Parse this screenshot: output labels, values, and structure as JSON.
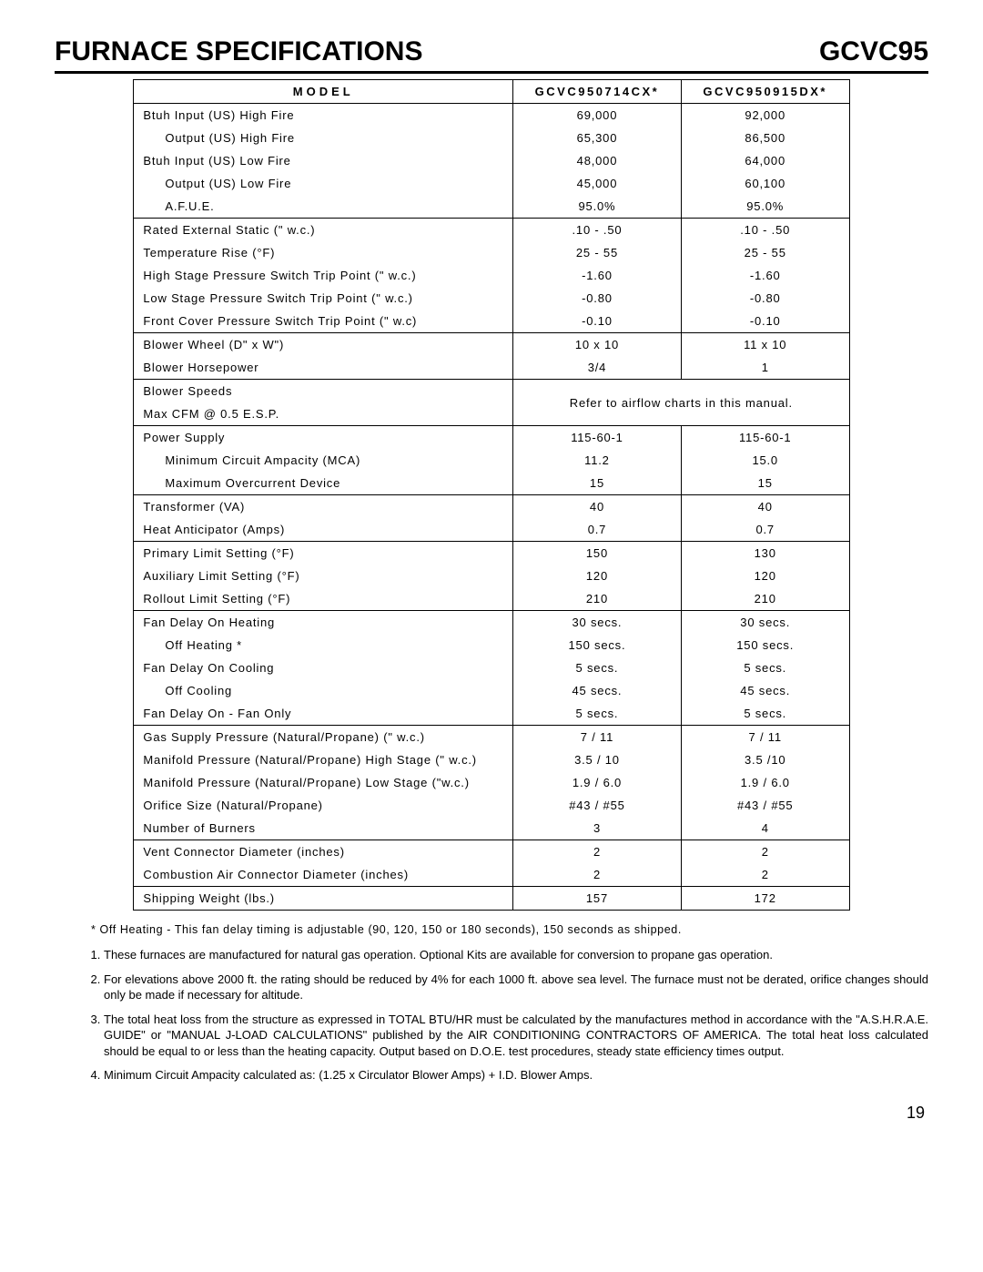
{
  "header": {
    "title": "FURNACE SPECIFICATIONS",
    "code": "GCVC95"
  },
  "table": {
    "col_label": "MODEL",
    "col1": "GCVC950714CX*",
    "col2": "GCVC950915DX*",
    "col_widths": {
      "label": "53%",
      "val": "23.5%"
    },
    "rows": [
      {
        "label": "Btuh Input (US) High Fire",
        "v1": "69,000",
        "v2": "92,000"
      },
      {
        "label": "Output (US) High Fire",
        "indent": 1,
        "v1": "65,300",
        "v2": "86,500"
      },
      {
        "label": "Btuh Input (US) Low Fire",
        "v1": "48,000",
        "v2": "64,000"
      },
      {
        "label": "Output (US) Low Fire",
        "indent": 1,
        "v1": "45,000",
        "v2": "60,100"
      },
      {
        "label": "A.F.U.E.",
        "indent": 1,
        "v1": "95.0%",
        "v2": "95.0%",
        "sep": true
      },
      {
        "label": "Rated External Static (\" w.c.)",
        "v1": ".10 - .50",
        "v2": ".10 - .50"
      },
      {
        "label": "Temperature Rise (°F)",
        "v1": "25 - 55",
        "v2": "25 - 55"
      },
      {
        "label": "High Stage Pressure Switch Trip Point (\" w.c.)",
        "v1": "-1.60",
        "v2": "-1.60"
      },
      {
        "label": "Low Stage Pressure Switch Trip Point (\" w.c.)",
        "v1": "-0.80",
        "v2": "-0.80"
      },
      {
        "label": "Front Cover Pressure Switch Trip Point (\" w.c)",
        "v1": "-0.10",
        "v2": "-0.10",
        "sep": true
      },
      {
        "label": "Blower Wheel (D\" x W\")",
        "v1": "10 x 10",
        "v2": "11 x 10"
      },
      {
        "label": "Blower Horsepower",
        "v1": "3/4",
        "v2": "1",
        "sep": true
      },
      {
        "label": "Blower Speeds",
        "merged": "Refer to airflow charts in this manual.",
        "two_row_merge_top": true
      },
      {
        "label": "Max CFM @ 0.5 E.S.P.",
        "two_row_merge_bottom": true,
        "sep": true
      },
      {
        "label": "Power Supply",
        "v1": "115-60-1",
        "v2": "115-60-1"
      },
      {
        "label": "Minimum Circuit Ampacity (MCA)",
        "indent": 1,
        "v1": "11.2",
        "v2": "15.0"
      },
      {
        "label": "Maximum Overcurrent Device",
        "indent": 1,
        "v1": "15",
        "v2": "15",
        "sep": true
      },
      {
        "label": "Transformer (VA)",
        "v1": "40",
        "v2": "40"
      },
      {
        "label": "Heat Anticipator (Amps)",
        "v1": "0.7",
        "v2": "0.7",
        "sep": true
      },
      {
        "label": "Primary Limit Setting (°F)",
        "v1": "150",
        "v2": "130"
      },
      {
        "label": "Auxiliary Limit Setting (°F)",
        "v1": "120",
        "v2": "120"
      },
      {
        "label": "Rollout Limit Setting (°F)",
        "v1": "210",
        "v2": "210",
        "sep": true
      },
      {
        "label": "Fan Delay On Heating",
        "v1": "30 secs.",
        "v2": "30 secs."
      },
      {
        "label": "Off Heating *",
        "indent": 1,
        "v1": "150 secs.",
        "v2": "150 secs."
      },
      {
        "label": "Fan Delay On Cooling",
        "v1": "5 secs.",
        "v2": "5 secs."
      },
      {
        "label": "Off Cooling",
        "indent": 1,
        "v1": "45 secs.",
        "v2": "45 secs."
      },
      {
        "label": "Fan Delay On - Fan Only",
        "v1": "5 secs.",
        "v2": "5 secs.",
        "sep": true
      },
      {
        "label": "Gas Supply Pressure (Natural/Propane) (\" w.c.)",
        "v1": "7 / 11",
        "v2": "7 / 11"
      },
      {
        "label": "Manifold Pressure (Natural/Propane) High Stage (\" w.c.)",
        "v1": "3.5 / 10",
        "v2": "3.5 /10"
      },
      {
        "label": "Manifold Pressure (Natural/Propane) Low Stage (\"w.c.)",
        "v1": "1.9 / 6.0",
        "v2": "1.9 / 6.0"
      },
      {
        "label": "Orifice Size (Natural/Propane)",
        "v1": "#43 / #55",
        "v2": "#43 / #55"
      },
      {
        "label": "Number of Burners",
        "v1": "3",
        "v2": "4",
        "sep": true
      },
      {
        "label": "Vent  Connector Diameter (inches)",
        "v1": "2",
        "v2": "2"
      },
      {
        "label": "Combustion Air Connector Diameter (inches)",
        "v1": "2",
        "v2": "2",
        "sep": true
      },
      {
        "label": "Shipping Weight (lbs.)",
        "v1": "157",
        "v2": "172",
        "sep": true
      }
    ]
  },
  "footnote": "* Off Heating - This fan delay timing is adjustable (90, 120, 150 or 180 seconds), 150 seconds as shipped.",
  "notes": [
    "These furnaces are manufactured for natural gas operation. Optional Kits are available for conversion to propane gas operation.",
    "For elevations above 2000 ft. the rating should be reduced by 4% for each 1000 ft. above sea level. The furnace must not be derated, orifice changes should only be made if necessary for altitude.",
    "The total heat loss from the structure as expressed in TOTAL BTU/HR must be calculated by the manufactures method in accordance with the \"A.S.H.R.A.E. GUIDE\" or \"MANUAL J-LOAD CALCULATIONS\" published by the AIR CONDITIONING CONTRACTORS OF AMERICA. The total heat loss calculated should be equal to or less than the heating capacity. Output based on D.O.E. test procedures, steady state efficiency times output.",
    "Minimum Circuit Ampacity calculated as: (1.25 x Circulator Blower Amps) + I.D. Blower Amps."
  ],
  "page_number": "19"
}
